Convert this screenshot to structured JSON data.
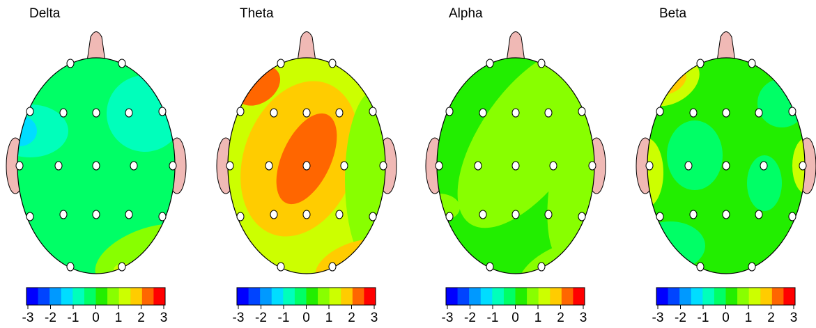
{
  "chart_data": [
    {
      "type": "topomap",
      "title": "Delta",
      "colorbar": {
        "lim": [
          -3,
          3
        ],
        "ticks": [
          -3,
          -2,
          -1,
          0,
          1,
          2,
          3
        ],
        "colors": [
          "#0000ff",
          "#0044ff",
          "#0099ff",
          "#00ddff",
          "#00ffbb",
          "#00ff66",
          "#22ee00",
          "#88ff00",
          "#ccff00",
          "#ffcc00",
          "#ff6600",
          "#ff0000"
        ]
      }
    },
    {
      "type": "topomap",
      "title": "Theta",
      "colorbar": {
        "lim": [
          -3,
          3
        ],
        "ticks": [
          -3,
          -2,
          -1,
          0,
          1,
          2,
          3
        ],
        "colors": [
          "#0000ff",
          "#0044ff",
          "#0099ff",
          "#00ddff",
          "#00ffbb",
          "#00ff66",
          "#22ee00",
          "#88ff00",
          "#ccff00",
          "#ffcc00",
          "#ff6600",
          "#ff0000"
        ]
      }
    },
    {
      "type": "topomap",
      "title": "Alpha",
      "colorbar": {
        "lim": [
          -3,
          3
        ],
        "ticks": [
          -3,
          -2,
          -1,
          0,
          1,
          2,
          3
        ],
        "colors": [
          "#0000ff",
          "#0044ff",
          "#0099ff",
          "#00ddff",
          "#00ffbb",
          "#00ff66",
          "#22ee00",
          "#88ff00",
          "#ccff00",
          "#ffcc00",
          "#ff6600",
          "#ff0000"
        ]
      }
    },
    {
      "type": "topomap",
      "title": "Beta",
      "colorbar": {
        "lim": [
          -3,
          3
        ],
        "ticks": [
          -3,
          -2,
          -1,
          0,
          1,
          2,
          3
        ],
        "colors": [
          "#0000ff",
          "#0044ff",
          "#0099ff",
          "#00ddff",
          "#00ffbb",
          "#00ff66",
          "#22ee00",
          "#88ff00",
          "#ccff00",
          "#ffcc00",
          "#ff6600",
          "#ff0000"
        ]
      }
    }
  ]
}
